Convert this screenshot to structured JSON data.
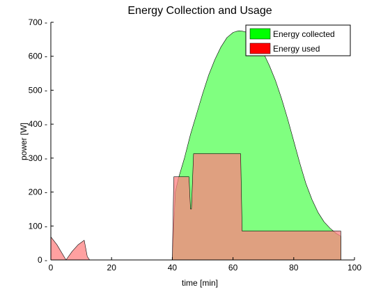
{
  "chart_data": {
    "type": "area",
    "title": "Energy Collection and Usage",
    "xlabel": "time [min]",
    "ylabel": "power [W]",
    "xlim": [
      0,
      100
    ],
    "ylim": [
      0,
      700
    ],
    "xticks": [
      0,
      20,
      40,
      60,
      80,
      100
    ],
    "yticks": [
      0,
      100,
      200,
      300,
      400,
      500,
      600,
      700
    ],
    "legend_position": "top-right",
    "series": [
      {
        "name": "Energy collected",
        "color": "#00ff00",
        "fill": "#80ff80",
        "x": [
          40,
          41,
          42,
          44,
          46,
          48,
          50,
          52,
          54,
          56,
          58,
          60,
          61,
          62,
          63,
          64,
          66,
          68,
          70,
          72,
          74,
          76,
          78,
          80,
          82,
          84,
          86,
          88,
          90,
          92,
          94,
          95.5
        ],
        "y": [
          0,
          200,
          240,
          300,
          370,
          430,
          490,
          545,
          590,
          627,
          655,
          670,
          673,
          675,
          674,
          672,
          660,
          640,
          610,
          572,
          528,
          475,
          415,
          350,
          285,
          225,
          178,
          140,
          112,
          93,
          78,
          70
        ]
      },
      {
        "name": "Energy used",
        "color": "#ff0000",
        "fill": "#ff8080",
        "x": [
          0,
          0,
          2,
          5,
          7,
          9,
          11,
          12,
          12.8,
          34,
          34.8,
          35.5,
          36.5,
          37,
          39,
          39.5,
          40,
          40,
          40.5,
          43,
          43.5,
          44,
          45.5,
          46,
          46.3,
          47,
          56,
          62,
          62.5,
          63,
          94,
          94.5,
          95.5,
          95.5
        ],
        "y": [
          0,
          68,
          45,
          0,
          25,
          45,
          58,
          10,
          0,
          0,
          0,
          0,
          0,
          0,
          0,
          0,
          0,
          0,
          245,
          245,
          245,
          245,
          245,
          150,
          150,
          313,
          313,
          313,
          313,
          85,
          85,
          85,
          85,
          0
        ]
      }
    ],
    "legend": [
      "Energy collected",
      "Energy used"
    ]
  }
}
